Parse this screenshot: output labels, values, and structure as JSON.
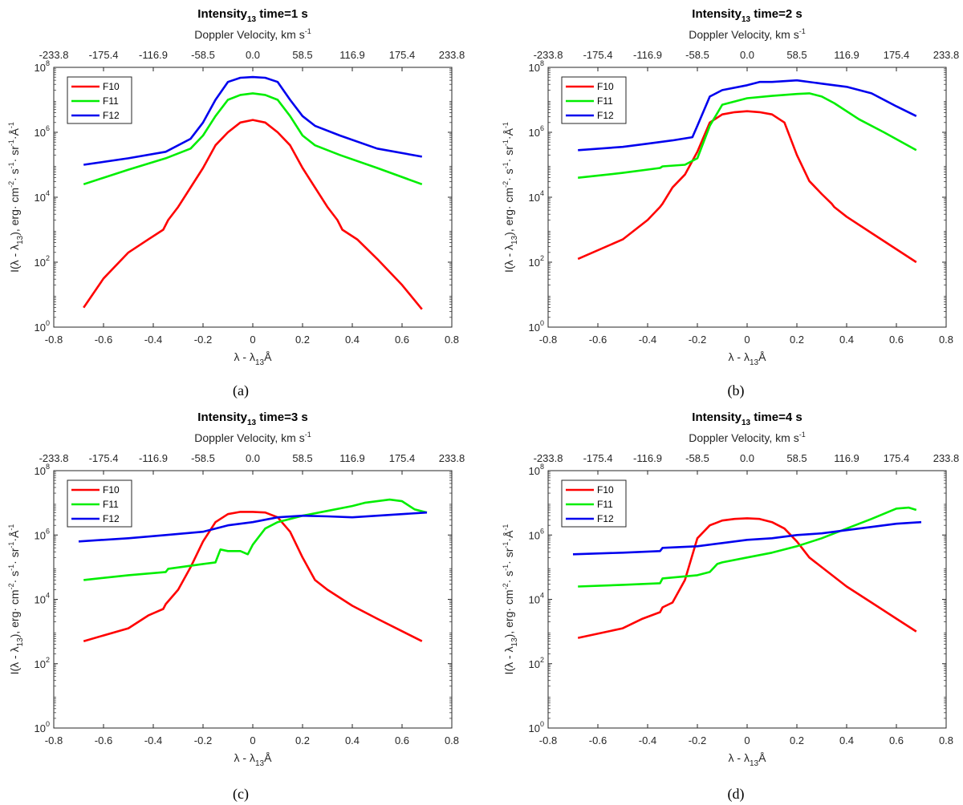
{
  "figure": {
    "shared": {
      "xlabel": "λ - λ",
      "xlabel_sub": "13",
      "xlabel_tail": "Å",
      "ylabel_main": "I(λ - λ",
      "ylabel_sub": "13",
      "ylabel_tail": "), erg· cm",
      "ylabel_tail2": "· s",
      "ylabel_tail3": "· sr",
      "ylabel_tail4": "·Å",
      "ylabel_sup_2": "-2",
      "ylabel_sup_1": "-1",
      "top_axis_label": "Doppler Velocity, km s",
      "top_axis_sup": "-1",
      "x_ticks": [
        "-0.8",
        "-0.6",
        "-0.4",
        "-0.2",
        "0",
        "0.2",
        "0.4",
        "0.6",
        "0.8"
      ],
      "top_ticks": [
        "-233.8",
        "-175.4",
        "-116.9",
        "-58.5",
        "0.0",
        "58.5",
        "116.9",
        "175.4",
        "233.8"
      ],
      "y_ticks_base": [
        "10",
        "10",
        "10",
        "10",
        "10"
      ],
      "y_ticks_exp": [
        "0",
        "2",
        "4",
        "6",
        "8"
      ]
    },
    "colors": {
      "F10": "#ff0000",
      "F11": "#00ee00",
      "F12": "#0000ee"
    }
  },
  "chart_data": [
    {
      "type": "line",
      "panel": "(a)",
      "title_main": "Intensity",
      "title_sub": "13",
      "title_tail": " time=1 s",
      "xlim": [
        -0.8,
        0.8
      ],
      "ylim_log10": [
        0,
        8
      ],
      "x_top_lim": [
        -233.8,
        233.8
      ],
      "legend": [
        "F10",
        "F11",
        "F12"
      ],
      "series": [
        {
          "name": "F10",
          "x": [
            -0.68,
            -0.6,
            -0.5,
            -0.42,
            -0.36,
            -0.34,
            -0.3,
            -0.2,
            -0.15,
            -0.1,
            -0.05,
            0,
            0.05,
            0.1,
            0.15,
            0.2,
            0.3,
            0.34,
            0.36,
            0.42,
            0.5,
            0.6,
            0.68
          ],
          "log10y": [
            0.6,
            1.5,
            2.3,
            2.7,
            3.0,
            3.3,
            3.7,
            4.9,
            5.6,
            6.0,
            6.3,
            6.38,
            6.3,
            6.0,
            5.6,
            4.9,
            3.7,
            3.3,
            3.0,
            2.7,
            2.1,
            1.3,
            0.55
          ]
        },
        {
          "name": "F11",
          "x": [
            -0.68,
            -0.5,
            -0.35,
            -0.25,
            -0.2,
            -0.15,
            -0.1,
            -0.05,
            0,
            0.05,
            0.1,
            0.15,
            0.2,
            0.25,
            0.35,
            0.5,
            0.68
          ],
          "log10y": [
            4.4,
            4.85,
            5.2,
            5.5,
            5.9,
            6.5,
            7.0,
            7.15,
            7.2,
            7.15,
            7.0,
            6.5,
            5.9,
            5.6,
            5.3,
            4.9,
            4.4
          ]
        },
        {
          "name": "F12",
          "x": [
            -0.68,
            -0.5,
            -0.35,
            -0.25,
            -0.2,
            -0.15,
            -0.1,
            -0.05,
            0,
            0.05,
            0.1,
            0.15,
            0.2,
            0.25,
            0.35,
            0.5,
            0.68
          ],
          "log10y": [
            5.0,
            5.2,
            5.4,
            5.8,
            6.3,
            7.0,
            7.55,
            7.68,
            7.7,
            7.68,
            7.55,
            7.0,
            6.5,
            6.2,
            5.9,
            5.5,
            5.25
          ]
        }
      ]
    },
    {
      "type": "line",
      "panel": "(b)",
      "title_main": "Intensity",
      "title_sub": "13",
      "title_tail": " time=2 s",
      "xlim": [
        -0.8,
        0.8
      ],
      "ylim_log10": [
        0,
        8
      ],
      "x_top_lim": [
        -233.8,
        233.8
      ],
      "legend": [
        "F10",
        "F11",
        "F12"
      ],
      "series": [
        {
          "name": "F10",
          "x": [
            -0.68,
            -0.5,
            -0.4,
            -0.35,
            -0.34,
            -0.3,
            -0.25,
            -0.2,
            -0.15,
            -0.1,
            -0.05,
            0,
            0.05,
            0.1,
            0.15,
            0.2,
            0.25,
            0.3,
            0.34,
            0.35,
            0.4,
            0.5,
            0.68
          ],
          "log10y": [
            2.1,
            2.7,
            3.3,
            3.7,
            3.8,
            4.3,
            4.7,
            5.4,
            6.3,
            6.55,
            6.62,
            6.65,
            6.62,
            6.55,
            6.3,
            5.3,
            4.5,
            4.1,
            3.8,
            3.7,
            3.4,
            2.9,
            2.0
          ]
        },
        {
          "name": "F11",
          "x": [
            -0.68,
            -0.5,
            -0.35,
            -0.34,
            -0.25,
            -0.2,
            -0.15,
            -0.1,
            0,
            0.1,
            0.2,
            0.25,
            0.3,
            0.35,
            0.45,
            0.55,
            0.68
          ],
          "log10y": [
            4.6,
            4.75,
            4.9,
            4.95,
            5.0,
            5.2,
            6.2,
            6.85,
            7.05,
            7.12,
            7.18,
            7.2,
            7.1,
            6.9,
            6.4,
            6.0,
            5.45
          ]
        },
        {
          "name": "F12",
          "x": [
            -0.68,
            -0.5,
            -0.4,
            -0.3,
            -0.22,
            -0.2,
            -0.15,
            -0.1,
            0,
            0.05,
            0.1,
            0.2,
            0.3,
            0.4,
            0.5,
            0.6,
            0.68
          ],
          "log10y": [
            5.45,
            5.55,
            5.65,
            5.75,
            5.85,
            6.2,
            7.1,
            7.3,
            7.45,
            7.55,
            7.55,
            7.6,
            7.5,
            7.4,
            7.2,
            6.8,
            6.5
          ]
        }
      ]
    },
    {
      "type": "line",
      "panel": "(c)",
      "title_main": "Intensity",
      "title_sub": "13",
      "title_tail": " time=3 s",
      "xlim": [
        -0.8,
        0.8
      ],
      "ylim_log10": [
        0,
        8
      ],
      "x_top_lim": [
        -233.8,
        233.8
      ],
      "legend": [
        "F10",
        "F11",
        "F12"
      ],
      "series": [
        {
          "name": "F10",
          "x": [
            -0.68,
            -0.5,
            -0.42,
            -0.36,
            -0.35,
            -0.3,
            -0.25,
            -0.2,
            -0.15,
            -0.1,
            -0.05,
            0,
            0.05,
            0.1,
            0.15,
            0.2,
            0.25,
            0.3,
            0.34,
            0.4,
            0.5,
            0.68
          ],
          "log10y": [
            2.7,
            3.1,
            3.5,
            3.7,
            3.85,
            4.3,
            5.0,
            5.8,
            6.4,
            6.65,
            6.72,
            6.72,
            6.7,
            6.55,
            6.1,
            5.3,
            4.6,
            4.3,
            4.1,
            3.8,
            3.4,
            2.7
          ]
        },
        {
          "name": "F11",
          "x": [
            -0.68,
            -0.5,
            -0.35,
            -0.34,
            -0.2,
            -0.15,
            -0.13,
            -0.1,
            -0.05,
            -0.02,
            0,
            0.05,
            0.1,
            0.2,
            0.3,
            0.4,
            0.45,
            0.5,
            0.55,
            0.6,
            0.65,
            0.7
          ],
          "log10y": [
            4.6,
            4.75,
            4.85,
            4.95,
            5.1,
            5.15,
            5.55,
            5.5,
            5.5,
            5.4,
            5.7,
            6.2,
            6.4,
            6.6,
            6.75,
            6.9,
            7.0,
            7.05,
            7.1,
            7.05,
            6.8,
            6.7
          ]
        },
        {
          "name": "F12",
          "x": [
            -0.7,
            -0.5,
            -0.35,
            -0.2,
            -0.15,
            -0.1,
            -0.05,
            0,
            0.1,
            0.2,
            0.3,
            0.4,
            0.5,
            0.6,
            0.7
          ],
          "log10y": [
            5.8,
            5.9,
            6.0,
            6.1,
            6.2,
            6.3,
            6.35,
            6.4,
            6.55,
            6.6,
            6.58,
            6.55,
            6.6,
            6.65,
            6.7
          ]
        }
      ]
    },
    {
      "type": "line",
      "panel": "(d)",
      "title_main": "Intensity",
      "title_sub": "13",
      "title_tail": " time=4 s",
      "xlim": [
        -0.8,
        0.8
      ],
      "ylim_log10": [
        0,
        8
      ],
      "x_top_lim": [
        -233.8,
        233.8
      ],
      "legend": [
        "F10",
        "F11",
        "F12"
      ],
      "series": [
        {
          "name": "F10",
          "x": [
            -0.68,
            -0.5,
            -0.42,
            -0.35,
            -0.34,
            -0.3,
            -0.25,
            -0.2,
            -0.15,
            -0.1,
            -0.05,
            0,
            0.05,
            0.1,
            0.15,
            0.2,
            0.25,
            0.3,
            0.4,
            0.5,
            0.6,
            0.68
          ],
          "log10y": [
            2.8,
            3.1,
            3.4,
            3.6,
            3.75,
            3.9,
            4.6,
            5.9,
            6.3,
            6.45,
            6.5,
            6.52,
            6.5,
            6.4,
            6.2,
            5.8,
            5.3,
            5.0,
            4.4,
            3.9,
            3.4,
            3.0
          ]
        },
        {
          "name": "F11",
          "x": [
            -0.68,
            -0.5,
            -0.35,
            -0.34,
            -0.2,
            -0.15,
            -0.12,
            -0.1,
            0,
            0.1,
            0.2,
            0.3,
            0.4,
            0.5,
            0.6,
            0.65,
            0.68
          ],
          "log10y": [
            4.4,
            4.45,
            4.5,
            4.65,
            4.75,
            4.85,
            5.1,
            5.15,
            5.3,
            5.45,
            5.65,
            5.9,
            6.2,
            6.5,
            6.82,
            6.85,
            6.78
          ]
        },
        {
          "name": "F12",
          "x": [
            -0.7,
            -0.5,
            -0.35,
            -0.34,
            -0.2,
            -0.1,
            0,
            0.1,
            0.2,
            0.3,
            0.4,
            0.5,
            0.6,
            0.7
          ],
          "log10y": [
            5.4,
            5.45,
            5.5,
            5.6,
            5.65,
            5.75,
            5.85,
            5.9,
            6.0,
            6.05,
            6.15,
            6.25,
            6.35,
            6.4
          ]
        }
      ]
    }
  ],
  "captions": [
    "(a)",
    "(b)",
    "(c)",
    "(d)"
  ]
}
